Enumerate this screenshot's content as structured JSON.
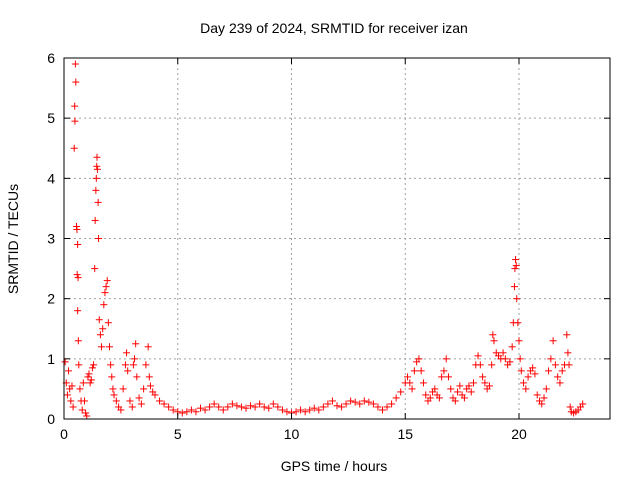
{
  "chart_data": {
    "type": "scatter",
    "title": "Day 239 of 2024, SRMTID for receiver izan",
    "xlabel": "GPS time / hours",
    "ylabel": "SRMTID / TECUs",
    "xlim": [
      0,
      24
    ],
    "ylim": [
      0,
      6
    ],
    "xticks": [
      0,
      5,
      10,
      15,
      20
    ],
    "yticks": [
      0,
      1,
      2,
      3,
      4,
      5,
      6
    ],
    "grid": true,
    "marker": "+",
    "color": "#ff0000",
    "series": [
      {
        "name": "izan",
        "points": [
          [
            0.05,
            0.95
          ],
          [
            0.1,
            0.6
          ],
          [
            0.15,
            0.4
          ],
          [
            0.2,
            0.8
          ],
          [
            0.25,
            0.5
          ],
          [
            0.3,
            0.3
          ],
          [
            0.35,
            0.55
          ],
          [
            0.4,
            0.2
          ],
          [
            0.45,
            4.5
          ],
          [
            0.47,
            5.2
          ],
          [
            0.5,
            5.9
          ],
          [
            0.52,
            5.6
          ],
          [
            0.48,
            4.95
          ],
          [
            0.55,
            3.2
          ],
          [
            0.57,
            3.15
          ],
          [
            0.6,
            2.9
          ],
          [
            0.62,
            2.35
          ],
          [
            0.58,
            2.4
          ],
          [
            0.6,
            1.8
          ],
          [
            0.63,
            1.3
          ],
          [
            0.65,
            0.9
          ],
          [
            0.7,
            0.5
          ],
          [
            0.75,
            0.3
          ],
          [
            0.8,
            0.15
          ],
          [
            0.85,
            0.6
          ],
          [
            0.9,
            0.3
          ],
          [
            0.95,
            0.1
          ],
          [
            1.0,
            0.05
          ],
          [
            1.05,
            0.7
          ],
          [
            1.1,
            0.75
          ],
          [
            1.15,
            0.6
          ],
          [
            1.2,
            0.65
          ],
          [
            1.25,
            0.85
          ],
          [
            1.3,
            0.9
          ],
          [
            1.35,
            2.5
          ],
          [
            1.37,
            3.3
          ],
          [
            1.4,
            3.8
          ],
          [
            1.42,
            4.0
          ],
          [
            1.44,
            4.2
          ],
          [
            1.45,
            4.35
          ],
          [
            1.47,
            4.15
          ],
          [
            1.5,
            3.6
          ],
          [
            1.52,
            3.0
          ],
          [
            1.55,
            1.65
          ],
          [
            1.6,
            1.4
          ],
          [
            1.65,
            1.2
          ],
          [
            1.7,
            1.5
          ],
          [
            1.75,
            1.9
          ],
          [
            1.8,
            2.1
          ],
          [
            1.85,
            2.2
          ],
          [
            1.9,
            2.3
          ],
          [
            1.95,
            1.6
          ],
          [
            2.0,
            1.2
          ],
          [
            2.05,
            0.9
          ],
          [
            2.1,
            0.7
          ],
          [
            2.15,
            0.5
          ],
          [
            2.2,
            0.4
          ],
          [
            2.3,
            0.3
          ],
          [
            2.4,
            0.2
          ],
          [
            2.5,
            0.15
          ],
          [
            2.6,
            0.5
          ],
          [
            2.7,
            0.9
          ],
          [
            2.75,
            1.1
          ],
          [
            2.8,
            0.8
          ],
          [
            2.9,
            0.3
          ],
          [
            3.0,
            0.2
          ],
          [
            3.05,
            0.9
          ],
          [
            3.1,
            1.0
          ],
          [
            3.15,
            1.25
          ],
          [
            3.2,
            0.7
          ],
          [
            3.3,
            0.35
          ],
          [
            3.4,
            0.25
          ],
          [
            3.5,
            0.5
          ],
          [
            3.6,
            0.9
          ],
          [
            3.7,
            1.2
          ],
          [
            3.75,
            0.7
          ],
          [
            3.8,
            0.55
          ],
          [
            3.9,
            0.45
          ],
          [
            4.0,
            0.4
          ],
          [
            4.2,
            0.3
          ],
          [
            4.4,
            0.25
          ],
          [
            4.6,
            0.2
          ],
          [
            4.8,
            0.15
          ],
          [
            5.0,
            0.12
          ],
          [
            5.2,
            0.1
          ],
          [
            5.4,
            0.12
          ],
          [
            5.6,
            0.15
          ],
          [
            5.8,
            0.12
          ],
          [
            6.0,
            0.18
          ],
          [
            6.2,
            0.15
          ],
          [
            6.4,
            0.2
          ],
          [
            6.6,
            0.25
          ],
          [
            6.8,
            0.2
          ],
          [
            7.0,
            0.15
          ],
          [
            7.2,
            0.2
          ],
          [
            7.4,
            0.25
          ],
          [
            7.6,
            0.22
          ],
          [
            7.8,
            0.2
          ],
          [
            8.0,
            0.18
          ],
          [
            8.2,
            0.22
          ],
          [
            8.4,
            0.2
          ],
          [
            8.6,
            0.25
          ],
          [
            8.8,
            0.2
          ],
          [
            9.0,
            0.18
          ],
          [
            9.2,
            0.25
          ],
          [
            9.4,
            0.2
          ],
          [
            9.6,
            0.15
          ],
          [
            9.8,
            0.12
          ],
          [
            10.0,
            0.1
          ],
          [
            10.2,
            0.12
          ],
          [
            10.4,
            0.15
          ],
          [
            10.6,
            0.12
          ],
          [
            10.8,
            0.15
          ],
          [
            11.0,
            0.18
          ],
          [
            11.2,
            0.15
          ],
          [
            11.4,
            0.2
          ],
          [
            11.6,
            0.25
          ],
          [
            11.8,
            0.3
          ],
          [
            12.0,
            0.22
          ],
          [
            12.2,
            0.2
          ],
          [
            12.4,
            0.25
          ],
          [
            12.6,
            0.3
          ],
          [
            12.8,
            0.28
          ],
          [
            13.0,
            0.25
          ],
          [
            13.2,
            0.3
          ],
          [
            13.4,
            0.28
          ],
          [
            13.6,
            0.25
          ],
          [
            13.8,
            0.2
          ],
          [
            14.0,
            0.15
          ],
          [
            14.2,
            0.2
          ],
          [
            14.4,
            0.25
          ],
          [
            14.6,
            0.35
          ],
          [
            14.8,
            0.45
          ],
          [
            15.0,
            0.6
          ],
          [
            15.1,
            0.7
          ],
          [
            15.2,
            0.6
          ],
          [
            15.3,
            0.5
          ],
          [
            15.4,
            0.8
          ],
          [
            15.5,
            0.95
          ],
          [
            15.6,
            1.0
          ],
          [
            15.7,
            0.8
          ],
          [
            15.8,
            0.6
          ],
          [
            15.9,
            0.4
          ],
          [
            16.0,
            0.3
          ],
          [
            16.1,
            0.35
          ],
          [
            16.2,
            0.45
          ],
          [
            16.3,
            0.5
          ],
          [
            16.4,
            0.4
          ],
          [
            16.5,
            0.35
          ],
          [
            16.6,
            0.7
          ],
          [
            16.7,
            0.8
          ],
          [
            16.8,
            1.0
          ],
          [
            16.9,
            0.7
          ],
          [
            17.0,
            0.5
          ],
          [
            17.1,
            0.35
          ],
          [
            17.2,
            0.3
          ],
          [
            17.3,
            0.45
          ],
          [
            17.4,
            0.55
          ],
          [
            17.5,
            0.4
          ],
          [
            17.6,
            0.35
          ],
          [
            17.7,
            0.5
          ],
          [
            17.8,
            0.55
          ],
          [
            17.9,
            0.45
          ],
          [
            18.0,
            0.6
          ],
          [
            18.1,
            0.9
          ],
          [
            18.2,
            1.05
          ],
          [
            18.3,
            0.9
          ],
          [
            18.4,
            0.7
          ],
          [
            18.5,
            0.6
          ],
          [
            18.6,
            0.5
          ],
          [
            18.7,
            0.55
          ],
          [
            18.8,
            0.9
          ],
          [
            18.85,
            1.4
          ],
          [
            18.9,
            1.3
          ],
          [
            19.0,
            1.1
          ],
          [
            19.1,
            1.05
          ],
          [
            19.2,
            1.0
          ],
          [
            19.3,
            1.1
          ],
          [
            19.4,
            1.0
          ],
          [
            19.5,
            0.9
          ],
          [
            19.6,
            0.95
          ],
          [
            19.7,
            1.2
          ],
          [
            19.75,
            1.6
          ],
          [
            19.8,
            2.2
          ],
          [
            19.82,
            2.5
          ],
          [
            19.85,
            2.65
          ],
          [
            19.88,
            2.55
          ],
          [
            19.9,
            2.0
          ],
          [
            19.95,
            1.6
          ],
          [
            20.0,
            1.3
          ],
          [
            20.05,
            1.0
          ],
          [
            20.1,
            0.8
          ],
          [
            20.2,
            0.6
          ],
          [
            20.3,
            0.5
          ],
          [
            20.4,
            0.7
          ],
          [
            20.5,
            0.8
          ],
          [
            20.6,
            0.85
          ],
          [
            20.7,
            0.75
          ],
          [
            20.8,
            0.4
          ],
          [
            20.9,
            0.3
          ],
          [
            21.0,
            0.25
          ],
          [
            21.1,
            0.35
          ],
          [
            21.2,
            0.5
          ],
          [
            21.3,
            0.8
          ],
          [
            21.4,
            1.0
          ],
          [
            21.5,
            1.3
          ],
          [
            21.6,
            0.9
          ],
          [
            21.7,
            0.7
          ],
          [
            21.8,
            0.6
          ],
          [
            21.9,
            0.8
          ],
          [
            22.0,
            0.9
          ],
          [
            22.1,
            1.4
          ],
          [
            22.15,
            1.1
          ],
          [
            22.2,
            0.9
          ],
          [
            22.25,
            0.2
          ],
          [
            22.3,
            0.12
          ],
          [
            22.4,
            0.1
          ],
          [
            22.5,
            0.12
          ],
          [
            22.6,
            0.15
          ],
          [
            22.7,
            0.2
          ],
          [
            22.8,
            0.25
          ]
        ]
      }
    ]
  }
}
